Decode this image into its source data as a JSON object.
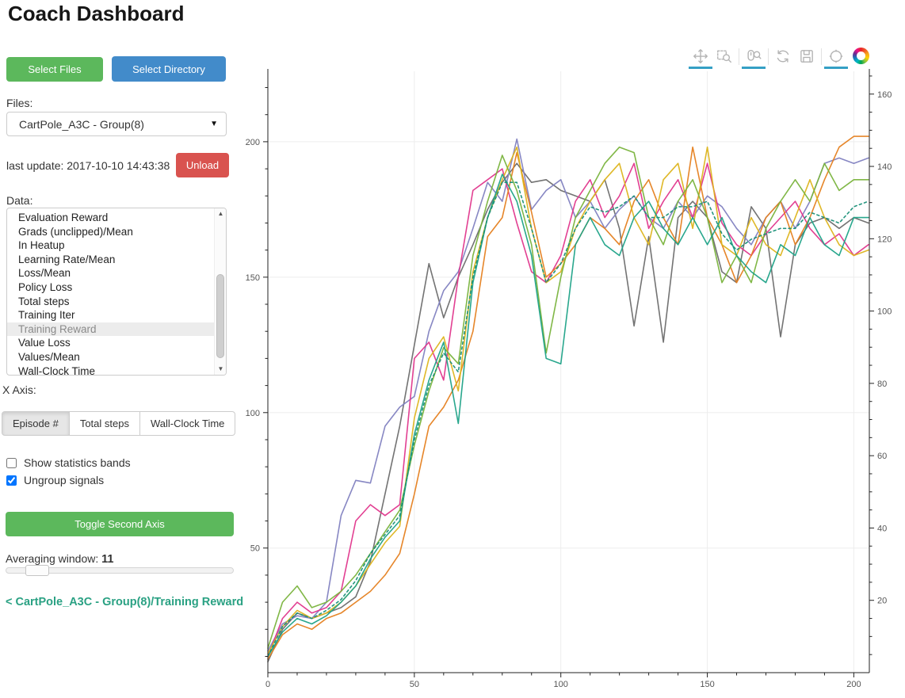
{
  "page": {
    "title": "Coach Dashboard"
  },
  "colors": {
    "green_button": "#5cb85c",
    "blue_button": "#428bca",
    "red_button": "#d9534f",
    "link": "#2aa183",
    "tool_active_bar": "#35a0c5"
  },
  "sidebar": {
    "select_files_label": "Select Files",
    "select_directory_label": "Select Directory",
    "files_label": "Files:",
    "files_selected": "CartPole_A3C - Group(8)",
    "last_update": "last update: 2017-10-10 14:43:38",
    "unload_label": "Unload",
    "data_label": "Data:",
    "data_items": [
      "Evaluation Reward",
      "Grads (unclipped)/Mean",
      "In Heatup",
      "Learning Rate/Mean",
      "Loss/Mean",
      "Policy Loss",
      "Total steps",
      "Training Iter",
      "Training Reward",
      "Value Loss",
      "Values/Mean",
      "Wall-Clock Time"
    ],
    "data_selected_index": 8,
    "x_axis_label": "X Axis:",
    "x_axis_options": [
      "Episode #",
      "Total steps",
      "Wall-Clock Time"
    ],
    "x_axis_active": "Episode #",
    "checkboxes": [
      {
        "label": "Show statistics bands",
        "checked": false
      },
      {
        "label": "Ungroup signals",
        "checked": true
      }
    ],
    "toggle_second_axis_label": "Toggle Second Axis",
    "averaging_label": "Averaging window:",
    "averaging_value": "11",
    "breadcrumb": "< CartPole_A3C - Group(8)/Training Reward"
  },
  "toolbar": {
    "tools": [
      {
        "name": "pan",
        "active": true
      },
      {
        "name": "box-zoom",
        "active": false
      },
      {
        "name": "wheel-zoom",
        "active": true
      },
      {
        "name": "reset",
        "active": false
      },
      {
        "name": "save",
        "active": false
      },
      {
        "name": "hover",
        "active": true
      }
    ],
    "separators_after": [
      1,
      2,
      4
    ]
  },
  "chart_data": {
    "type": "line",
    "title": "",
    "xlabel": "Episode #",
    "ylabel": "Training Reward",
    "legend": "none",
    "grid": true,
    "x_axis": {
      "range": [
        0,
        205.3
      ],
      "major_ticks": [
        0,
        50,
        100,
        150,
        200
      ],
      "minor_step": 10
    },
    "y_axis_left": {
      "range": [
        4,
        226
      ],
      "major_ticks": [
        50,
        100,
        150,
        200
      ],
      "minor_step": 10
    },
    "y_axis_right": {
      "range": [
        0,
        166.3
      ],
      "major_ticks": [
        20,
        40,
        60,
        80,
        100,
        120,
        140,
        160
      ],
      "minor_step": 5
    },
    "x": [
      0,
      5,
      10,
      15,
      20,
      25,
      30,
      35,
      40,
      45,
      50,
      55,
      60,
      65,
      70,
      75,
      80,
      85,
      90,
      95,
      100,
      105,
      110,
      115,
      120,
      125,
      130,
      135,
      140,
      145,
      150,
      155,
      160,
      165,
      170,
      175,
      180,
      185,
      190,
      195,
      200,
      205
    ],
    "series": [
      {
        "name": "worker-gray",
        "color": "#6b6b6b",
        "dash": false,
        "values": [
          8,
          20,
          26,
          24,
          26,
          28,
          32,
          45,
          70,
          95,
          125,
          155,
          135,
          150,
          162,
          175,
          185,
          192,
          185,
          186,
          182,
          180,
          178,
          186,
          168,
          132,
          165,
          126,
          172,
          178,
          172,
          152,
          148,
          176,
          168,
          128,
          162,
          170,
          172,
          168,
          172,
          170
        ]
      },
      {
        "name": "worker-purple",
        "color": "#8181c0",
        "dash": false,
        "values": [
          12,
          22,
          25,
          24,
          30,
          62,
          75,
          74,
          95,
          102,
          106,
          130,
          145,
          152,
          168,
          185,
          178,
          201,
          175,
          182,
          186,
          172,
          178,
          168,
          175,
          180,
          172,
          168,
          178,
          172,
          180,
          176,
          168,
          162,
          172,
          178,
          168,
          178,
          192,
          194,
          192,
          194
        ]
      },
      {
        "name": "worker-magenta",
        "color": "#e0368c",
        "dash": false,
        "values": [
          10,
          24,
          30,
          26,
          28,
          34,
          60,
          66,
          62,
          66,
          120,
          126,
          112,
          150,
          182,
          186,
          190,
          170,
          152,
          148,
          158,
          178,
          186,
          172,
          180,
          192,
          168,
          178,
          186,
          172,
          192,
          170,
          162,
          158,
          166,
          172,
          178,
          168,
          162,
          166,
          158,
          162
        ]
      },
      {
        "name": "worker-orange",
        "color": "#e5801f",
        "dash": false,
        "values": [
          9,
          18,
          22,
          20,
          24,
          26,
          30,
          34,
          40,
          48,
          70,
          95,
          102,
          112,
          130,
          165,
          172,
          196,
          174,
          150,
          155,
          162,
          172,
          168,
          162,
          178,
          186,
          172,
          162,
          198,
          172,
          162,
          148,
          158,
          172,
          178,
          162,
          172,
          186,
          198,
          202,
          202
        ]
      },
      {
        "name": "worker-gold",
        "color": "#ddb41c",
        "dash": false,
        "values": [
          11,
          21,
          27,
          24,
          26,
          30,
          36,
          44,
          52,
          58,
          98,
          120,
          128,
          108,
          152,
          172,
          186,
          198,
          168,
          148,
          152,
          168,
          178,
          186,
          192,
          172,
          162,
          186,
          192,
          168,
          198,
          162,
          158,
          172,
          162,
          158,
          172,
          186,
          172,
          162,
          158,
          160
        ]
      },
      {
        "name": "worker-green",
        "color": "#79b33c",
        "dash": false,
        "values": [
          13,
          30,
          36,
          28,
          30,
          34,
          40,
          48,
          56,
          64,
          88,
          108,
          124,
          118,
          158,
          178,
          195,
          182,
          162,
          122,
          150,
          172,
          182,
          192,
          198,
          196,
          172,
          162,
          178,
          186,
          172,
          148,
          158,
          148,
          168,
          178,
          186,
          178,
          192,
          182,
          186,
          186
        ]
      },
      {
        "name": "worker-teal",
        "color": "#1da287",
        "dash": false,
        "values": [
          10,
          19,
          24,
          22,
          25,
          30,
          36,
          46,
          54,
          60,
          92,
          112,
          126,
          96,
          148,
          172,
          188,
          178,
          158,
          120,
          118,
          162,
          172,
          162,
          158,
          172,
          178,
          168,
          162,
          172,
          162,
          172,
          158,
          152,
          148,
          162,
          158,
          172,
          162,
          158,
          172,
          172
        ]
      },
      {
        "name": "mean-teal-dashed",
        "color": "#188f77",
        "dash": true,
        "values": [
          10,
          21,
          26,
          24,
          27,
          31,
          38,
          48,
          55,
          62,
          90,
          110,
          122,
          115,
          150,
          172,
          185,
          185,
          168,
          148,
          155,
          168,
          176,
          174,
          176,
          180,
          172,
          172,
          176,
          176,
          178,
          166,
          160,
          164,
          166,
          168,
          168,
          174,
          172,
          170,
          176,
          178
        ]
      }
    ]
  }
}
